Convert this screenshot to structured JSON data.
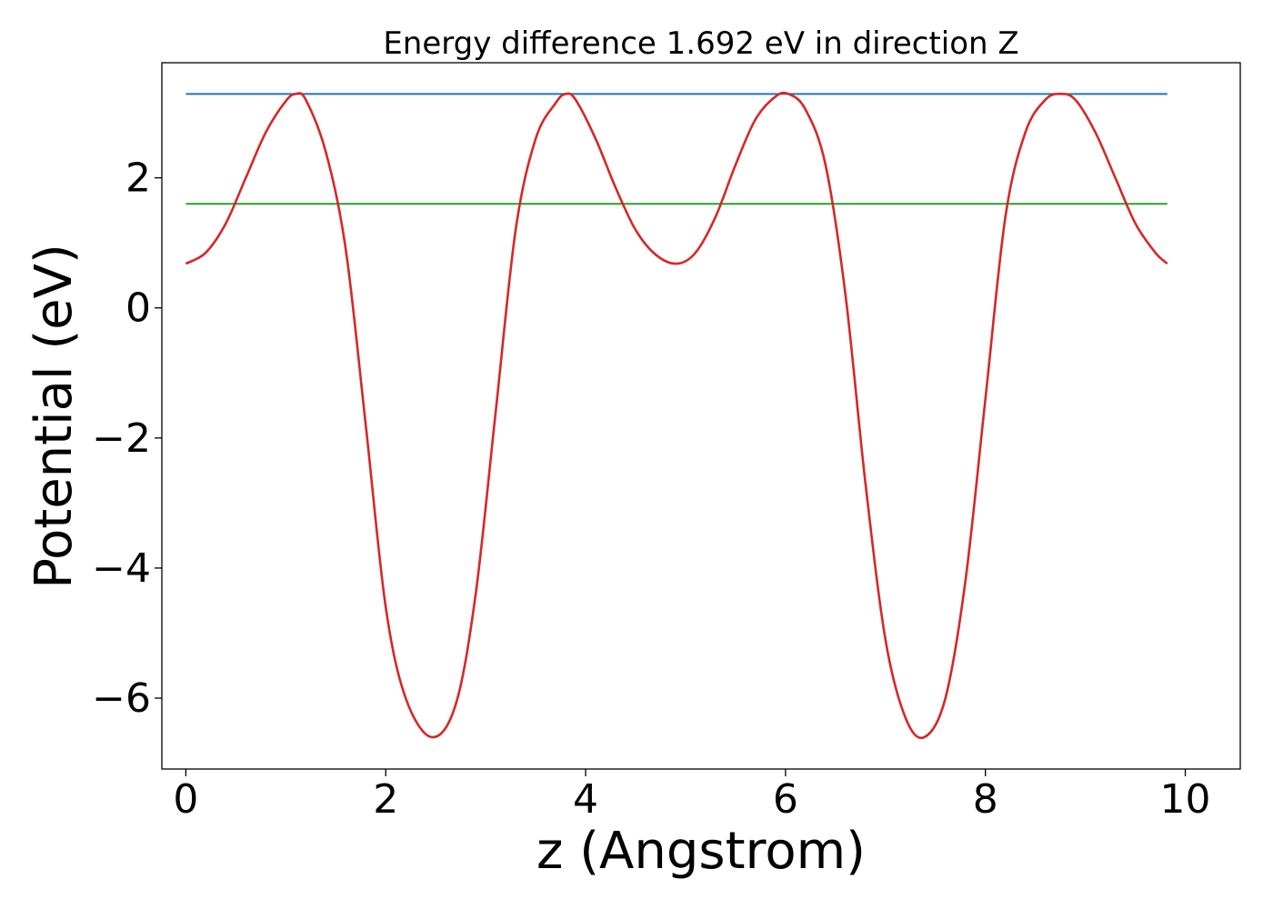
{
  "chart_data": {
    "type": "line",
    "title": "Energy difference 1.692 eV in direction Z",
    "xlabel": "z (Angstrom)",
    "ylabel": "Potential (eV)",
    "xlim": [
      -0.24,
      10.55
    ],
    "ylim": [
      -7.09,
      3.77
    ],
    "xticks": [
      0,
      2,
      4,
      6,
      8,
      10
    ],
    "yticks": [
      -6,
      -4,
      -2,
      0,
      2
    ],
    "xtick_labels": [
      "0",
      "2",
      "4",
      "6",
      "8",
      "10"
    ],
    "ytick_labels": [
      "−6",
      "−4",
      "−2",
      "0",
      "2"
    ],
    "grid": false,
    "legend": null,
    "series": [
      {
        "color": "#1f77b4",
        "style": "horizontal",
        "x": [
          0,
          9.82
        ],
        "y": [
          3.29,
          3.29
        ]
      },
      {
        "color": "#2ca02c",
        "style": "horizontal",
        "x": [
          0,
          9.82
        ],
        "y": [
          1.6,
          1.6
        ]
      },
      {
        "color": "#d62728",
        "style": "curve",
        "x": [
          0.0,
          0.2,
          0.4,
          0.6,
          0.8,
          1.0,
          1.1,
          1.2,
          1.4,
          1.6,
          1.8,
          2.0,
          2.2,
          2.46,
          2.7,
          2.9,
          3.1,
          3.3,
          3.5,
          3.7,
          3.8,
          3.9,
          4.1,
          4.3,
          4.5,
          4.7,
          4.91,
          5.1,
          5.3,
          5.5,
          5.7,
          5.9,
          6.03,
          6.2,
          6.4,
          6.6,
          6.8,
          7.0,
          7.2,
          7.39,
          7.6,
          7.8,
          8.0,
          8.2,
          8.4,
          8.6,
          8.75,
          8.9,
          9.1,
          9.3,
          9.5,
          9.7,
          9.82
        ],
        "y": [
          0.68,
          0.85,
          1.3,
          2.0,
          2.7,
          3.18,
          3.29,
          3.2,
          2.4,
          0.9,
          -1.8,
          -4.6,
          -6.0,
          -6.6,
          -6.1,
          -4.4,
          -1.6,
          1.2,
          2.6,
          3.15,
          3.29,
          3.2,
          2.6,
          1.85,
          1.2,
          0.82,
          0.68,
          0.85,
          1.4,
          2.2,
          2.9,
          3.25,
          3.29,
          3.05,
          2.2,
          0.2,
          -2.7,
          -5.1,
          -6.3,
          -6.6,
          -6.0,
          -4.2,
          -1.4,
          1.4,
          2.7,
          3.2,
          3.29,
          3.2,
          2.7,
          2.0,
          1.3,
          0.85,
          0.68
        ]
      }
    ]
  }
}
